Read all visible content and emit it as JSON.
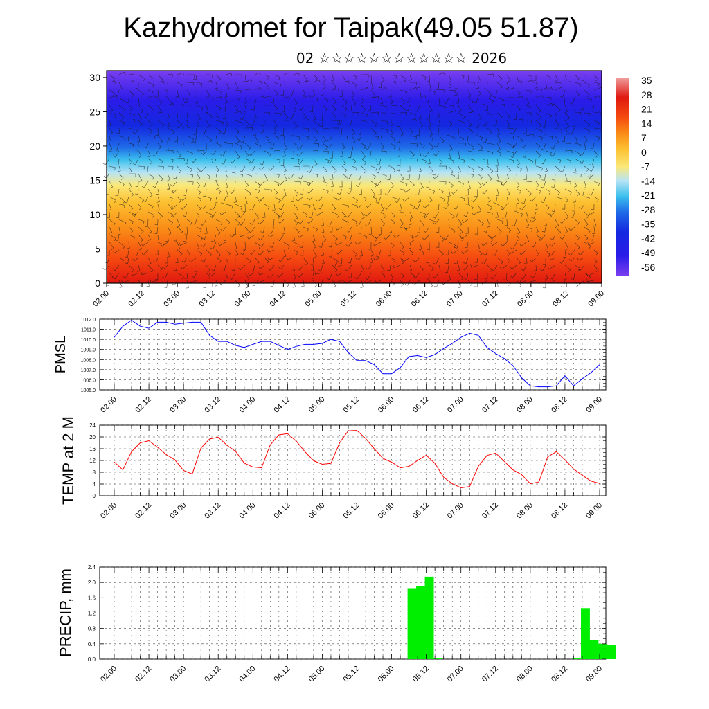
{
  "title": "Kazhydromet for Taipak(49.05 51.87)",
  "subtitle": "02 ☆☆☆☆☆☆☆☆☆☆☆☆ 2026",
  "colors": {
    "pmsl_line": "#0000ff",
    "temp_line": "#ff0000",
    "precip_bar": "#00ee00"
  },
  "chart_data": [
    {
      "type": "heatmap",
      "title": "",
      "ylabel": "",
      "x_ticks": [
        "02.00",
        "02.12",
        "03.00",
        "03.12",
        "04.00",
        "04.12",
        "05.00",
        "05.12",
        "06.00",
        "06.12",
        "07.00",
        "07.12",
        "08.00",
        "08.12",
        "09.00"
      ],
      "y_ticks": [
        0,
        5,
        10,
        15,
        20,
        25,
        30
      ],
      "ylim": [
        0,
        31
      ],
      "colorbar_labels": [
        "35",
        "28",
        "21",
        "14",
        "7",
        "0",
        "-7",
        "-14",
        "-21",
        "-28",
        "-35",
        "-42",
        "-49",
        "-56"
      ],
      "overlay": "wind barbs",
      "grid": false
    },
    {
      "type": "line",
      "ylabel": "PMSL",
      "x_ticks": [
        "02.00",
        "02.12",
        "03.00",
        "03.12",
        "04.00",
        "04.12",
        "05.00",
        "05.12",
        "06.00",
        "06.12",
        "07.00",
        "07.12",
        "08.00",
        "08.12",
        "09.00"
      ],
      "y_ticks": [
        "1005.0",
        "1006.0",
        "1007.0",
        "1008.0",
        "1009.0",
        "1010.0",
        "1011.0",
        "1012.0"
      ],
      "ylim": [
        1005,
        1012
      ],
      "grid": true,
      "series": [
        {
          "values": [
            1010.2,
            1011.3,
            1011.9,
            1011.3,
            1011.1,
            1011.7,
            1011.7,
            1011.5,
            1011.6,
            1011.7,
            1011.7,
            1010.4,
            1009.8,
            1009.8,
            1009.4,
            1009.2,
            1009.5,
            1009.8,
            1009.8,
            1009.4,
            1009.0,
            1009.3,
            1009.5,
            1009.5,
            1009.6,
            1010.0,
            1009.8,
            1008.7,
            1007.9,
            1007.9,
            1007.5,
            1006.6,
            1006.6,
            1007.2,
            1008.3,
            1008.4,
            1008.2,
            1008.5,
            1009.1,
            1009.6,
            1010.2,
            1010.6,
            1010.4,
            1009.2,
            1008.6,
            1008.1,
            1007.4,
            1006.2,
            1005.4,
            1005.3,
            1005.3,
            1005.4,
            1006.4,
            1005.4,
            1006.1,
            1006.7,
            1007.5
          ]
        }
      ]
    },
    {
      "type": "line",
      "ylabel": "TEMP at 2 M",
      "x_ticks": [
        "02.00",
        "02.12",
        "03.00",
        "03.12",
        "04.00",
        "04.12",
        "05.00",
        "05.12",
        "06.00",
        "06.12",
        "07.00",
        "07.12",
        "08.00",
        "08.12",
        "09.00"
      ],
      "y_ticks": [
        0,
        4,
        8,
        12,
        16,
        20,
        24
      ],
      "ylim": [
        0,
        24
      ],
      "grid": true,
      "series": [
        {
          "values": [
            11.5,
            8.8,
            15.0,
            18.0,
            18.7,
            16.5,
            14.0,
            12.2,
            8.6,
            7.4,
            16.2,
            19.3,
            19.9,
            17.2,
            15.1,
            11.1,
            9.8,
            9.5,
            17.3,
            20.7,
            21.1,
            18.6,
            15.0,
            11.9,
            10.7,
            11.0,
            18.0,
            22.1,
            22.2,
            19.5,
            16.0,
            12.7,
            11.4,
            9.5,
            10.0,
            12.0,
            13.8,
            11.0,
            6.3,
            4.1,
            2.7,
            3.1,
            10.0,
            13.7,
            14.5,
            11.7,
            8.8,
            7.2,
            4.1,
            4.7,
            13.2,
            15.0,
            12.2,
            9.1,
            7.0,
            5.0,
            4.2
          ]
        }
      ]
    },
    {
      "type": "bar",
      "ylabel": "PRECIP, mm",
      "x_ticks": [
        "02.00",
        "02.12",
        "03.00",
        "03.12",
        "04.00",
        "04.12",
        "05.00",
        "05.12",
        "06.00",
        "06.12",
        "07.00",
        "07.12",
        "08.00",
        "08.12",
        "09.00"
      ],
      "y_ticks": [
        "0.0",
        "0.4",
        "0.8",
        "1.2",
        "1.6",
        "2.0",
        "2.4"
      ],
      "ylim": [
        0,
        2.4
      ],
      "grid": true,
      "bars": [
        {
          "index": 34,
          "value": 1.85
        },
        {
          "index": 35,
          "value": 1.9
        },
        {
          "index": 36,
          "value": 2.15
        },
        {
          "index": 37,
          "value": 0.02
        },
        {
          "index": 53,
          "value": 0.03
        },
        {
          "index": 54,
          "value": 1.33
        },
        {
          "index": 55,
          "value": 0.5
        },
        {
          "index": 56,
          "value": 0.4
        },
        {
          "index": 57,
          "value": 0.36
        }
      ]
    }
  ]
}
